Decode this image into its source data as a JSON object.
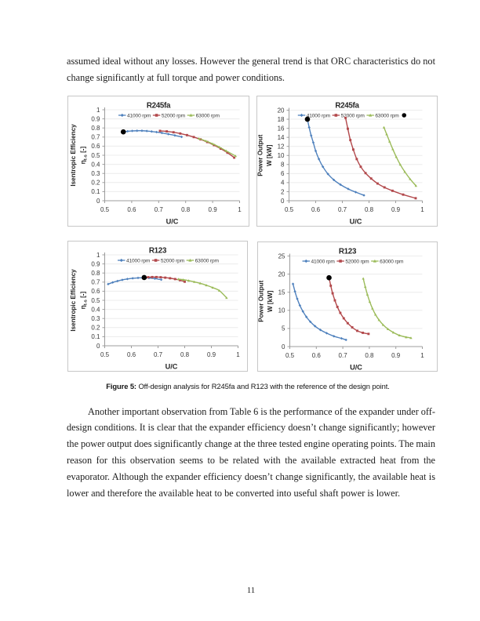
{
  "document": {
    "paragraph_top": {
      "lines": [
        "assumed ideal without any losses. However the general trend is that ORC characteristics do not",
        "change significantly at full torque and power conditions."
      ]
    },
    "figure_caption": {
      "label": "Figure 5:",
      "text": " Off-design analysis for R245fa and R123 with the reference of the design point."
    },
    "paragraph_bottom": {
      "lines": [
        "Another important observation from Table 6 is the performance of the expander under off-",
        "design conditions. It is clear that the expander efficiency doesn’t change significantly; however",
        "the power output does significantly change at the three tested engine operating points. The main",
        "reason for this observation seems to be related with the available extracted heat from the",
        "evaporator. Although the expander efficiency doesn’t change significantly, the available heat is",
        "lower and therefore the available heat to be converted into useful shaft power is lower."
      ]
    },
    "page_number": "11"
  },
  "colors": {
    "series_blue": "#4F81BD",
    "series_red": "#B2484B",
    "series_green": "#9BBB59",
    "design_point": "#000000",
    "axis": "#9c9c9c",
    "grid": "#ececec",
    "panel_border": "#c7c7c7",
    "chart_text": "#383838"
  },
  "chart_data": [
    {
      "type": "line",
      "title": "R245fa",
      "xlabel": "U/C",
      "ylabel_lines": [
        "Isentropic  Efficiency",
        "η_{t-s} [-]"
      ],
      "xlim": [
        0.5,
        1.0
      ],
      "ylim": [
        0,
        1
      ],
      "xticks": [
        "0.5",
        "0.6",
        "0.7",
        "0.8",
        "0.9",
        "1"
      ],
      "yticks": [
        "0",
        "0.1",
        "0.2",
        "0.3",
        "0.4",
        "0.5",
        "0.6",
        "0.7",
        "0.8",
        "0.9",
        "1"
      ],
      "legend_position": "top-center",
      "grid": "horizontal",
      "legend_extra_dot": false,
      "design_point": [
        0.569,
        0.757
      ],
      "series": [
        {
          "name": "41000 rpm",
          "color_key": "series_blue",
          "marker": "diamond",
          "points": [
            [
              0.569,
              0.757
            ],
            [
              0.585,
              0.7635
            ],
            [
              0.602,
              0.7675
            ],
            [
              0.62,
              0.7695
            ],
            [
              0.638,
              0.7695
            ],
            [
              0.656,
              0.7665
            ],
            [
              0.674,
              0.761
            ],
            [
              0.692,
              0.7545
            ],
            [
              0.712,
              0.7455
            ],
            [
              0.736,
              0.7325
            ],
            [
              0.76,
              0.7185
            ],
            [
              0.785,
              0.702
            ]
          ]
        },
        {
          "name": "52000 rpm",
          "color_key": "series_red",
          "marker": "square",
          "points": [
            [
              0.705,
              0.768
            ],
            [
              0.73,
              0.7625
            ],
            [
              0.755,
              0.7525
            ],
            [
              0.78,
              0.739
            ],
            [
              0.805,
              0.7215
            ],
            [
              0.83,
              0.7
            ],
            [
              0.855,
              0.675
            ],
            [
              0.88,
              0.6455
            ],
            [
              0.905,
              0.6115
            ],
            [
              0.93,
              0.5725
            ],
            [
              0.955,
              0.528
            ],
            [
              0.98,
              0.474
            ]
          ]
        },
        {
          "name": "63000 rpm",
          "color_key": "series_green",
          "marker": "triangle",
          "points": [
            [
              0.849,
              0.684
            ],
            [
              0.875,
              0.657
            ],
            [
              0.9,
              0.6255
            ],
            [
              0.925,
              0.5895
            ],
            [
              0.95,
              0.5485
            ],
            [
              0.985,
              0.492
            ]
          ]
        }
      ]
    },
    {
      "type": "line",
      "title": "R245fa",
      "xlabel": "U/C",
      "ylabel_lines": [
        "Power Output",
        "W [kW]"
      ],
      "xlim": [
        0.5,
        1.0
      ],
      "ylim": [
        0,
        20
      ],
      "xticks": [
        "0.5",
        "0.6",
        "0.7",
        "0.8",
        "0.9",
        "1"
      ],
      "yticks": [
        "0",
        "2",
        "4",
        "6",
        "8",
        "10",
        "12",
        "14",
        "16",
        "18",
        "20"
      ],
      "legend_position": "top-center",
      "grid": "horizontal",
      "legend_extra_dot": true,
      "design_point": [
        0.569,
        18.0
      ],
      "series": [
        {
          "name": "41000 rpm",
          "color_key": "series_blue",
          "marker": "diamond",
          "points": [
            [
              0.569,
              18.0
            ],
            [
              0.5755,
              16.2
            ],
            [
              0.583,
              14.4
            ],
            [
              0.591,
              12.85
            ],
            [
              0.6,
              11.0
            ],
            [
              0.612,
              9.2
            ],
            [
              0.627,
              7.5
            ],
            [
              0.646,
              5.9
            ],
            [
              0.668,
              4.6
            ],
            [
              0.693,
              3.55
            ],
            [
              0.722,
              2.6
            ],
            [
              0.75,
              1.9
            ],
            [
              0.781,
              1.2
            ]
          ]
        },
        {
          "name": "52000 rpm",
          "color_key": "series_red",
          "marker": "square",
          "points": [
            [
              0.712,
              18.3
            ],
            [
              0.7205,
              15.9
            ],
            [
              0.73,
              13.4
            ],
            [
              0.741,
              11.3
            ],
            [
              0.754,
              9.2
            ],
            [
              0.769,
              7.5
            ],
            [
              0.787,
              6.1
            ],
            [
              0.808,
              4.9
            ],
            [
              0.832,
              3.8
            ],
            [
              0.858,
              2.95
            ],
            [
              0.888,
              2.2
            ],
            [
              0.928,
              1.35
            ],
            [
              0.975,
              0.55
            ]
          ]
        },
        {
          "name": "63000 rpm",
          "color_key": "series_green",
          "marker": "triangle",
          "points": [
            [
              0.856,
              16.2
            ],
            [
              0.866,
              14.7
            ],
            [
              0.877,
              13.1
            ],
            [
              0.889,
              11.4
            ],
            [
              0.902,
              9.7
            ],
            [
              0.917,
              8.0
            ],
            [
              0.934,
              6.4
            ],
            [
              0.954,
              4.8
            ],
            [
              0.976,
              3.3
            ]
          ]
        }
      ]
    },
    {
      "type": "line",
      "title": "R123",
      "xlabel": "U/C",
      "ylabel_lines": [
        "Isentropic  Efficiency",
        "η_{t-s} [-]"
      ],
      "xlim": [
        0.5,
        1.0
      ],
      "ylim": [
        0,
        1
      ],
      "xticks": [
        "0.5",
        "0.6",
        "0.7",
        "0.8",
        "0.9",
        "1"
      ],
      "yticks": [
        "0",
        "0.1",
        "0.2",
        "0.3",
        "0.4",
        "0.5",
        "0.6",
        "0.7",
        "0.8",
        "0.9",
        "1"
      ],
      "legend_position": "top-center",
      "grid": "horizontal",
      "legend_extra_dot": false,
      "design_point": [
        0.648,
        0.7505
      ],
      "series": [
        {
          "name": "41000 rpm",
          "color_key": "series_blue",
          "marker": "diamond",
          "points": [
            [
              0.513,
              0.678
            ],
            [
              0.53,
              0.6965
            ],
            [
              0.548,
              0.712
            ],
            [
              0.566,
              0.7245
            ],
            [
              0.585,
              0.7345
            ],
            [
              0.605,
              0.742
            ],
            [
              0.625,
              0.7465
            ],
            [
              0.645,
              0.748
            ],
            [
              0.666,
              0.7455
            ],
            [
              0.688,
              0.7385
            ],
            [
              0.712,
              0.7265
            ]
          ]
        },
        {
          "name": "52000 rpm",
          "color_key": "series_red",
          "marker": "square",
          "points": [
            [
              0.648,
              0.7505
            ],
            [
              0.663,
              0.754
            ],
            [
              0.678,
              0.7555
            ],
            [
              0.694,
              0.7555
            ],
            [
              0.71,
              0.7535
            ],
            [
              0.727,
              0.749
            ],
            [
              0.745,
              0.7425
            ],
            [
              0.764,
              0.7335
            ],
            [
              0.782,
              0.7215
            ],
            [
              0.8,
              0.7045
            ]
          ]
        },
        {
          "name": "63000 rpm",
          "color_key": "series_green",
          "marker": "triangle",
          "points": [
            [
              0.776,
              0.7335
            ],
            [
              0.795,
              0.7265
            ],
            [
              0.815,
              0.7165
            ],
            [
              0.836,
              0.7035
            ],
            [
              0.858,
              0.687
            ],
            [
              0.881,
              0.666
            ],
            [
              0.905,
              0.6395
            ],
            [
              0.93,
              0.6065
            ],
            [
              0.957,
              0.5275
            ]
          ]
        }
      ]
    },
    {
      "type": "line",
      "title": "R123",
      "xlabel": "U/C",
      "ylabel_lines": [
        "Power Output",
        "W [kW]"
      ],
      "xlim": [
        0.5,
        1.0
      ],
      "ylim": [
        0,
        25
      ],
      "xticks": [
        "0.5",
        "0.6",
        "0.7",
        "0.8",
        "0.9",
        "1"
      ],
      "yticks": [
        "0",
        "5",
        "10",
        "15",
        "20",
        "25"
      ],
      "legend_position": "top-center",
      "grid": "horizontal",
      "legend_extra_dot": false,
      "design_point": [
        0.648,
        19.0
      ],
      "series": [
        {
          "name": "41000 rpm",
          "color_key": "series_blue",
          "marker": "diamond",
          "points": [
            [
              0.512,
              17.3
            ],
            [
              0.5195,
              15.2
            ],
            [
              0.528,
              13.2
            ],
            [
              0.538,
              11.35
            ],
            [
              0.5495,
              9.7
            ],
            [
              0.5625,
              8.2
            ],
            [
              0.5775,
              6.85
            ],
            [
              0.595,
              5.65
            ],
            [
              0.6155,
              4.6
            ],
            [
              0.639,
              3.7
            ],
            [
              0.6665,
              2.85
            ],
            [
              0.695,
              2.25
            ],
            [
              0.712,
              1.85
            ]
          ]
        },
        {
          "name": "52000 rpm",
          "color_key": "series_red",
          "marker": "square",
          "points": [
            [
              0.648,
              19.0
            ],
            [
              0.6545,
              16.8
            ],
            [
              0.6615,
              14.7
            ],
            [
              0.67,
              12.75
            ],
            [
              0.6795,
              10.95
            ],
            [
              0.6905,
              9.3
            ],
            [
              0.7035,
              7.8
            ],
            [
              0.7185,
              6.45
            ],
            [
              0.7355,
              5.3
            ],
            [
              0.7545,
              4.35
            ],
            [
              0.7755,
              3.8
            ],
            [
              0.797,
              3.5
            ]
          ]
        },
        {
          "name": "63000 rpm",
          "color_key": "series_green",
          "marker": "triangle",
          "points": [
            [
              0.777,
              18.8
            ],
            [
              0.7845,
              16.55
            ],
            [
              0.7925,
              14.4
            ],
            [
              0.8015,
              12.4
            ],
            [
              0.8115,
              10.55
            ],
            [
              0.823,
              8.85
            ],
            [
              0.8365,
              7.35
            ],
            [
              0.852,
              6.0
            ],
            [
              0.87,
              4.85
            ],
            [
              0.8905,
              3.9
            ],
            [
              0.9135,
              3.1
            ],
            [
              0.939,
              2.6
            ],
            [
              0.957,
              2.4
            ]
          ]
        }
      ]
    }
  ]
}
